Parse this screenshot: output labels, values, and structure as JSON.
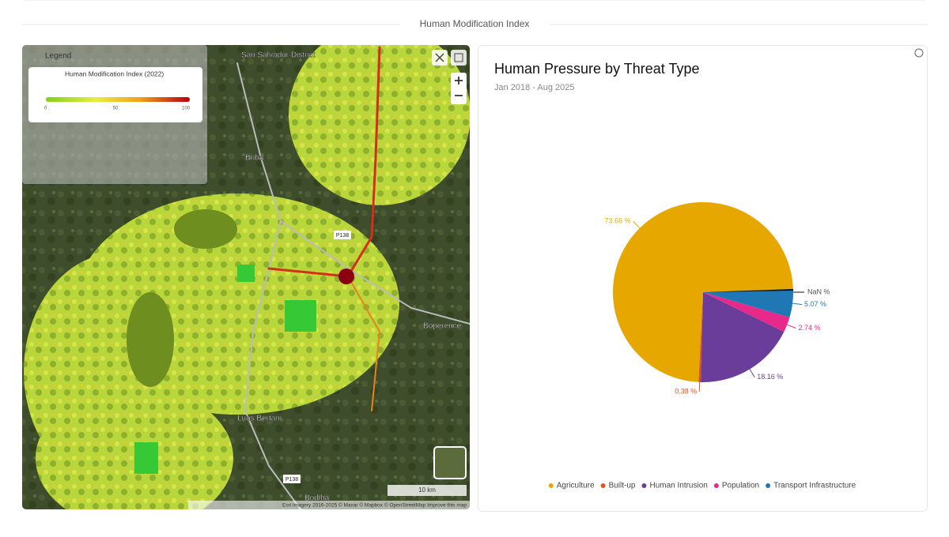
{
  "section_title": "Human Modification Index",
  "map": {
    "legend_title": "Legend",
    "layer_name": "Human Modification Index (2022)",
    "scale_ticks": [
      "0",
      "50",
      "100"
    ],
    "places": [
      "San Salvador District",
      "Buba",
      "Boperence",
      "Luas Bertani",
      "Bodiba"
    ],
    "road_labels": [
      "P138",
      "P138"
    ],
    "scale_bar": "10 km",
    "attribution": "Esri imagery 2016-2025 © Maxar © Mapbox © OpenStreetMap Improve this map"
  },
  "chart_data": {
    "type": "pie",
    "title": "Human Pressure by Threat Type",
    "subtitle": "Jan 2018 - Aug 2025",
    "categories": [
      "Agriculture",
      "Built-up",
      "Human Intrusion",
      "Population",
      "Transport Infrastructure"
    ],
    "values": [
      73.66,
      0.38,
      18.16,
      2.74,
      5.07
    ],
    "value_labels": [
      "73.66 %",
      "0.38 %",
      "18.16 %",
      "2.74 %",
      "5.07 %"
    ],
    "colors": [
      "#e6a800",
      "#e0521c",
      "#6a3d9a",
      "#e7298a",
      "#1f78b4"
    ],
    "extra_label": "NaN %",
    "legend_position": "bottom"
  }
}
